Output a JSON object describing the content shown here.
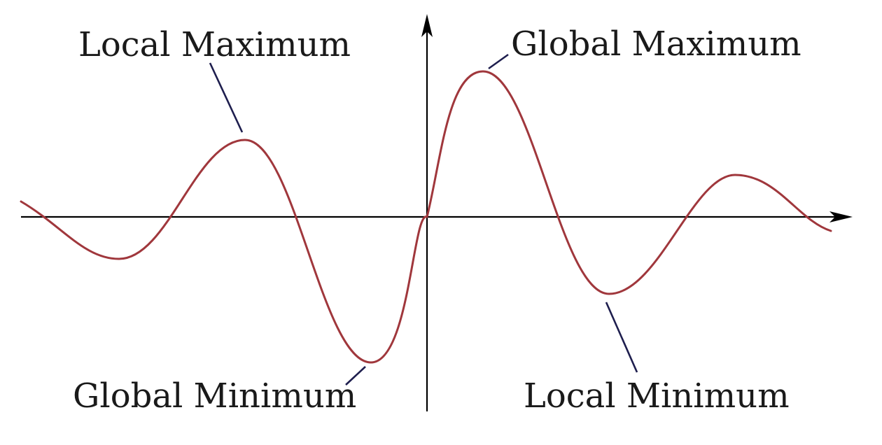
{
  "colors": {
    "curve": "#a0373c",
    "leader": "#1e1e4e",
    "axis": "#000000"
  },
  "labels": {
    "local_maximum": "Local Maximum",
    "global_maximum": "Global Maximum",
    "global_minimum": "Global Minimum",
    "local_minimum": "Local Minimum"
  }
}
